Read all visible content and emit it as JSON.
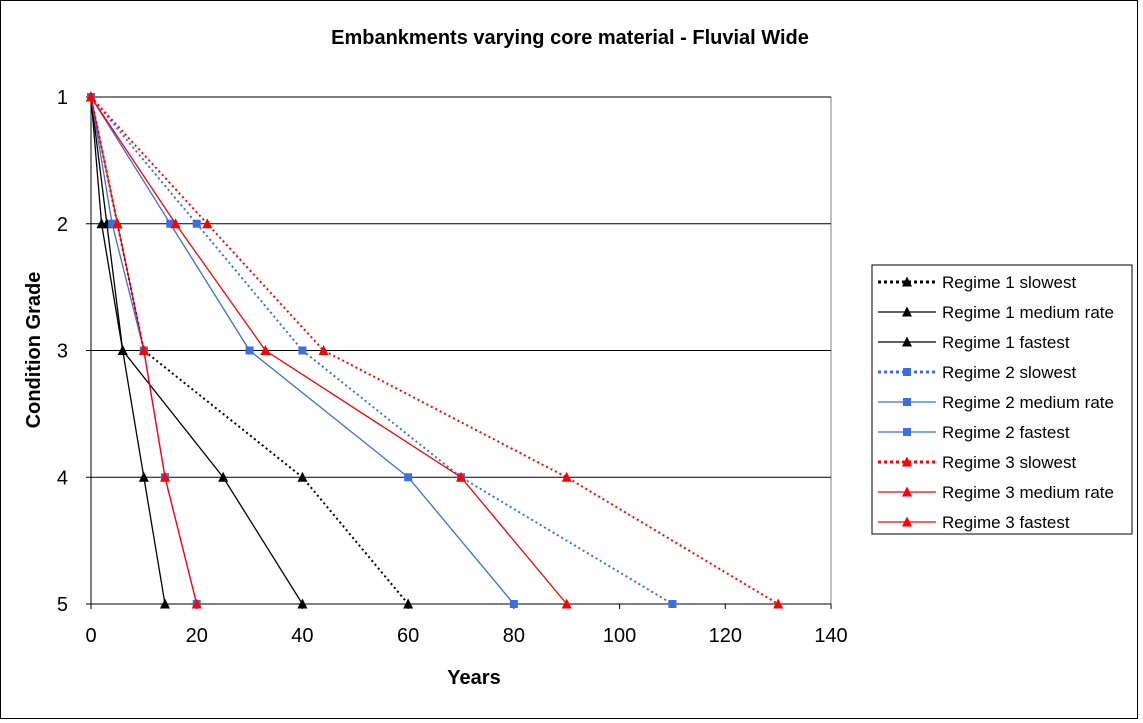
{
  "chart_data": {
    "type": "line",
    "title": "Embankments varying core material - Fluvial Wide",
    "xlabel": "Years",
    "ylabel": "Condition Grade",
    "xlim": [
      0,
      140
    ],
    "ylim": [
      1,
      5
    ],
    "y_inverted": true,
    "x_ticks": [
      0,
      20,
      40,
      60,
      80,
      100,
      120,
      140
    ],
    "y_ticks": [
      1,
      2,
      3,
      4,
      5
    ],
    "grid": "horizontal major gridlines",
    "legend_position": "right",
    "colors": {
      "regime1": "#000000",
      "regime2": "#3b6fe0",
      "regime3": "#ff0000"
    },
    "series": [
      {
        "name": "Regime 1 slowest",
        "color": "#000000",
        "line_style": "dotted",
        "marker": "triangle",
        "points": [
          [
            0,
            1
          ],
          [
            5,
            2
          ],
          [
            10,
            3
          ],
          [
            40,
            4
          ],
          [
            60,
            5
          ]
        ]
      },
      {
        "name": "Regime 1 medium rate",
        "color": "#000000",
        "line_style": "solid",
        "marker": "triangle",
        "points": [
          [
            0,
            1
          ],
          [
            3,
            2
          ],
          [
            6,
            3
          ],
          [
            25,
            4
          ],
          [
            40,
            5
          ]
        ]
      },
      {
        "name": "Regime 1 fastest",
        "color": "#000000",
        "line_style": "solid",
        "marker": "triangle",
        "points": [
          [
            0,
            1
          ],
          [
            2,
            2
          ],
          [
            6,
            3
          ],
          [
            10,
            4
          ],
          [
            14,
            5
          ]
        ]
      },
      {
        "name": "Regime 2 slowest",
        "color": "#3b6fe0",
        "line_style": "dotted",
        "marker": "square",
        "points": [
          [
            0,
            1
          ],
          [
            20,
            2
          ],
          [
            40,
            3
          ],
          [
            70,
            4
          ],
          [
            110,
            5
          ]
        ]
      },
      {
        "name": "Regime 2 medium rate",
        "color": "#3b6fe0",
        "line_style": "solid",
        "marker": "square",
        "points": [
          [
            0,
            1
          ],
          [
            15,
            2
          ],
          [
            30,
            3
          ],
          [
            60,
            4
          ],
          [
            80,
            5
          ]
        ]
      },
      {
        "name": "Regime 2 fastest",
        "color": "#3b6fe0",
        "line_style": "solid",
        "marker": "square",
        "points": [
          [
            0,
            1
          ],
          [
            4,
            2
          ],
          [
            10,
            3
          ],
          [
            14,
            4
          ],
          [
            20,
            5
          ]
        ]
      },
      {
        "name": "Regime 3 slowest",
        "color": "#ff0000",
        "line_style": "dotted",
        "marker": "triangle",
        "points": [
          [
            0,
            1
          ],
          [
            22,
            2
          ],
          [
            44,
            3
          ],
          [
            90,
            4
          ],
          [
            130,
            5
          ]
        ]
      },
      {
        "name": "Regime 3 medium rate",
        "color": "#ff0000",
        "line_style": "solid",
        "marker": "triangle",
        "points": [
          [
            0,
            1
          ],
          [
            16,
            2
          ],
          [
            33,
            3
          ],
          [
            70,
            4
          ],
          [
            90,
            5
          ]
        ]
      },
      {
        "name": "Regime 3 fastest",
        "color": "#ff0000",
        "line_style": "solid",
        "marker": "triangle",
        "points": [
          [
            0,
            1
          ],
          [
            5,
            2
          ],
          [
            10,
            3
          ],
          [
            14,
            4
          ],
          [
            20,
            5
          ]
        ]
      }
    ]
  }
}
